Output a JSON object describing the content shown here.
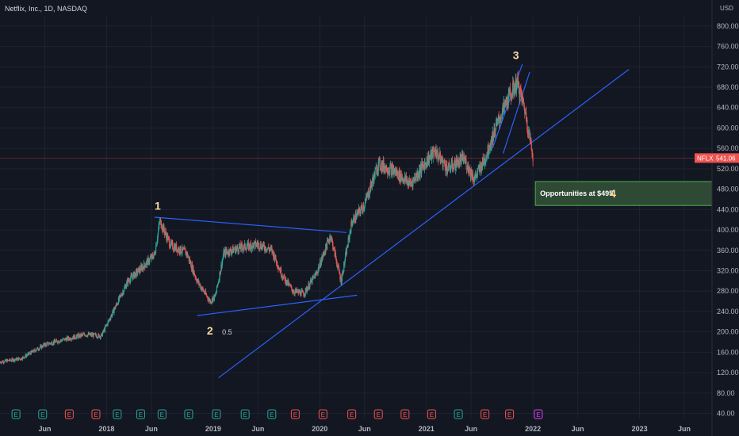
{
  "chart_data": {
    "type": "candlestick",
    "title": "Netflix, Inc., 1D, NASDAQ",
    "currency": "USD",
    "ticker": "NFLX",
    "last_price": "541.06",
    "y_ticks": [
      "40.00",
      "80.00",
      "120.00",
      "160.00",
      "200.00",
      "240.00",
      "280.00",
      "320.00",
      "360.00",
      "400.00",
      "440.00",
      "480.00",
      "520.00",
      "560.00",
      "600.00",
      "640.00",
      "680.00",
      "720.00",
      "760.00",
      "800.00"
    ],
    "ylim": [
      30,
      820
    ],
    "x_ticks": [
      {
        "label": "Jun",
        "date": 2017.42
      },
      {
        "label": "2018",
        "date": 2018.0
      },
      {
        "label": "Jun",
        "date": 2018.42
      },
      {
        "label": "2019",
        "date": 2019.0
      },
      {
        "label": "Jun",
        "date": 2019.42
      },
      {
        "label": "2020",
        "date": 2020.0
      },
      {
        "label": "Jun",
        "date": 2020.42
      },
      {
        "label": "2021",
        "date": 2021.0
      },
      {
        "label": "Jun",
        "date": 2021.42
      },
      {
        "label": "2022",
        "date": 2022.0
      },
      {
        "label": "Jun",
        "date": 2022.42
      },
      {
        "label": "2023",
        "date": 2023.0
      },
      {
        "label": "Jun",
        "date": 2023.42
      }
    ],
    "xlim": [
      2017.0,
      2023.68
    ],
    "price_path": [
      [
        2017.0,
        141
      ],
      [
        2017.2,
        148
      ],
      [
        2017.42,
        175
      ],
      [
        2017.6,
        185
      ],
      [
        2017.8,
        195
      ],
      [
        2017.95,
        192
      ],
      [
        2018.05,
        235
      ],
      [
        2018.2,
        300
      ],
      [
        2018.35,
        330
      ],
      [
        2018.45,
        352
      ],
      [
        2018.5,
        418
      ],
      [
        2018.6,
        370
      ],
      [
        2018.75,
        355
      ],
      [
        2018.85,
        300
      ],
      [
        2018.97,
        260
      ],
      [
        2019.02,
        270
      ],
      [
        2019.1,
        355
      ],
      [
        2019.25,
        365
      ],
      [
        2019.42,
        372
      ],
      [
        2019.55,
        360
      ],
      [
        2019.65,
        310
      ],
      [
        2019.75,
        280
      ],
      [
        2019.85,
        275
      ],
      [
        2019.97,
        315
      ],
      [
        2020.1,
        390
      ],
      [
        2020.2,
        300
      ],
      [
        2020.3,
        415
      ],
      [
        2020.42,
        450
      ],
      [
        2020.55,
        530
      ],
      [
        2020.7,
        515
      ],
      [
        2020.85,
        490
      ],
      [
        2021.0,
        535
      ],
      [
        2021.08,
        555
      ],
      [
        2021.2,
        520
      ],
      [
        2021.35,
        540
      ],
      [
        2021.45,
        500
      ],
      [
        2021.55,
        540
      ],
      [
        2021.65,
        600
      ],
      [
        2021.75,
        650
      ],
      [
        2021.85,
        690
      ],
      [
        2021.92,
        640
      ],
      [
        2022.0,
        545
      ]
    ],
    "earnings_markers": [
      {
        "date": 2017.15,
        "type": "E"
      },
      {
        "date": 2017.4,
        "type": "E"
      },
      {
        "date": 2017.65,
        "type": "E"
      },
      {
        "date": 2017.9,
        "type": "E"
      },
      {
        "date": 2018.1,
        "type": "E"
      },
      {
        "date": 2018.32,
        "type": "E"
      },
      {
        "date": 2018.52,
        "type": "E"
      },
      {
        "date": 2018.77,
        "type": "E"
      },
      {
        "date": 2019.03,
        "type": "E"
      },
      {
        "date": 2019.3,
        "type": "E"
      },
      {
        "date": 2019.55,
        "type": "E"
      },
      {
        "date": 2019.77,
        "type": "E"
      },
      {
        "date": 2020.03,
        "type": "E"
      },
      {
        "date": 2020.3,
        "type": "E"
      },
      {
        "date": 2020.55,
        "type": "E"
      },
      {
        "date": 2020.8,
        "type": "E"
      },
      {
        "date": 2021.05,
        "type": "E"
      },
      {
        "date": 2021.3,
        "type": "E"
      },
      {
        "date": 2021.55,
        "type": "E"
      },
      {
        "date": 2021.78,
        "type": "E"
      },
      {
        "date": 2022.05,
        "type": "E"
      }
    ],
    "trendlines": [
      {
        "from": [
          2018.45,
          425
        ],
        "to": [
          2020.25,
          395
        ]
      },
      {
        "from": [
          2018.85,
          232
        ],
        "to": [
          2020.35,
          272
        ]
      },
      {
        "from": [
          2019.05,
          110
        ],
        "to": [
          2022.9,
          715
        ]
      },
      {
        "from": [
          2021.62,
          560
        ],
        "to": [
          2021.9,
          725
        ]
      },
      {
        "from": [
          2021.72,
          550
        ],
        "to": [
          2021.97,
          710
        ]
      }
    ],
    "wave_labels": [
      {
        "text": "1",
        "date": 2018.48,
        "price": 440
      },
      {
        "text": "2",
        "date": 2018.97,
        "price": 195
      },
      {
        "text": "3",
        "date": 2021.84,
        "price": 735
      }
    ],
    "annotation_text": "0.5",
    "annotation_text_date": 2019.13,
    "annotation_text_price": 195,
    "callout": {
      "text": "Opportunities at $495.",
      "number": "4",
      "price_top": 495,
      "price_bottom": 448,
      "date_start": 2022.0
    },
    "colors": {
      "bg": "#131722",
      "up": "#26a69a",
      "down": "#ef5350",
      "trend": "#2962ff",
      "label": "#f7d9a0",
      "callout_fill": "#2e4a35",
      "callout_border": "#4caf50",
      "price_line": "#ef5350"
    }
  }
}
